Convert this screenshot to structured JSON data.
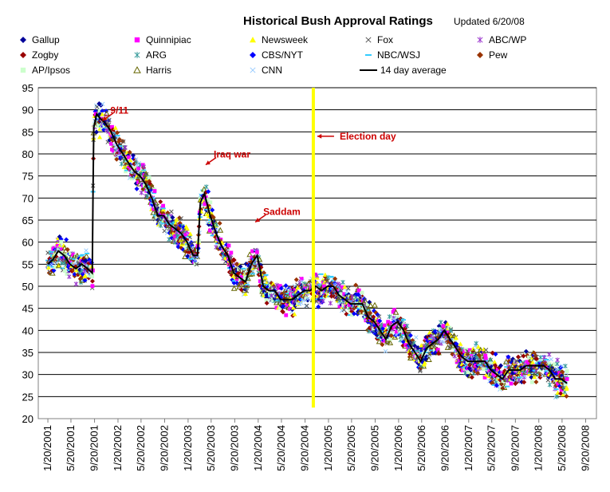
{
  "chart_data": {
    "type": "scatter",
    "title": "Historical Bush Approval Ratings",
    "subtitle": "Updated 6/20/08",
    "xlabel": "",
    "ylabel": "",
    "ylim": [
      20,
      95
    ],
    "yticks": [
      20,
      25,
      30,
      35,
      40,
      45,
      50,
      55,
      60,
      65,
      70,
      75,
      80,
      85,
      90,
      95
    ],
    "xlim": [
      "2000-12-01",
      "2008-11-15"
    ],
    "xticks": [
      "2001-01-20",
      "2001-05-20",
      "2001-09-20",
      "2002-01-20",
      "2002-05-20",
      "2002-09-20",
      "2003-01-20",
      "2003-05-20",
      "2003-09-20",
      "2004-01-20",
      "2004-05-20",
      "2004-09-20",
      "2005-01-20",
      "2005-05-20",
      "2005-09-20",
      "2006-01-20",
      "2006-05-20",
      "2006-09-20",
      "2007-01-20",
      "2007-05-20",
      "2007-09-20",
      "2008-01-20",
      "2008-05-20",
      "2008-09-20"
    ],
    "xtick_labels": [
      "1/20/2001",
      "5/20/2001",
      "9/20/2001",
      "1/20/2002",
      "5/20/2002",
      "9/20/2002",
      "1/20/2003",
      "5/20/2003",
      "9/20/2003",
      "1/20/2004",
      "5/20/2004",
      "9/20/2004",
      "1/20/2005",
      "5/20/2005",
      "9/20/2005",
      "1/20/2006",
      "5/20/2006",
      "9/20/2006",
      "1/20/2007",
      "5/20/2007",
      "9/20/2007",
      "1/20/2008",
      "5/20/2008",
      "9/20/2008"
    ],
    "grid": "horizontal",
    "legend_position": "top",
    "series": [
      {
        "name": "Gallup",
        "color": "#000099",
        "marker": "diamond"
      },
      {
        "name": "Quinnipiac",
        "color": "#ff00ff",
        "marker": "square"
      },
      {
        "name": "Newsweek",
        "color": "#ffff00",
        "marker": "triangle"
      },
      {
        "name": "Fox",
        "color": "#555555",
        "marker": "x"
      },
      {
        "name": "ABC/WP",
        "color": "#9933cc",
        "marker": "star"
      },
      {
        "name": "Zogby",
        "color": "#990000",
        "marker": "diamond"
      },
      {
        "name": "ARG",
        "color": "#339999",
        "marker": "star"
      },
      {
        "name": "CBS/NYT",
        "color": "#0000ff",
        "marker": "diamond"
      },
      {
        "name": "NBC/WSJ",
        "color": "#33ccff",
        "marker": "dash"
      },
      {
        "name": "Pew",
        "color": "#993300",
        "marker": "diamond"
      },
      {
        "name": "AP/Ipsos",
        "color": "#ccffcc",
        "marker": "square"
      },
      {
        "name": "Harris",
        "color": "#666600",
        "marker": "triangle-open"
      },
      {
        "name": "CNN",
        "color": "#99ccff",
        "marker": "x"
      },
      {
        "name": "14 day average",
        "color": "#000000",
        "marker": "line"
      }
    ],
    "average_path": [
      [
        "2001-01-20",
        55
      ],
      [
        "2001-02-15",
        56
      ],
      [
        "2001-03-15",
        58
      ],
      [
        "2001-04-15",
        57
      ],
      [
        "2001-05-15",
        55
      ],
      [
        "2001-06-15",
        54
      ],
      [
        "2001-07-15",
        55
      ],
      [
        "2001-08-15",
        54
      ],
      [
        "2001-09-08",
        53
      ],
      [
        "2001-09-12",
        72
      ],
      [
        "2001-09-16",
        86
      ],
      [
        "2001-10-01",
        89
      ],
      [
        "2001-10-20",
        88
      ],
      [
        "2001-11-15",
        87
      ],
      [
        "2001-12-15",
        85
      ],
      [
        "2002-01-15",
        82
      ],
      [
        "2002-02-15",
        80
      ],
      [
        "2002-03-15",
        78
      ],
      [
        "2002-04-15",
        76
      ],
      [
        "2002-05-15",
        75
      ],
      [
        "2002-06-15",
        73
      ],
      [
        "2002-07-15",
        70
      ],
      [
        "2002-08-15",
        66
      ],
      [
        "2002-09-15",
        66
      ],
      [
        "2002-10-15",
        64
      ],
      [
        "2002-11-15",
        63
      ],
      [
        "2002-12-15",
        62
      ],
      [
        "2003-01-15",
        60
      ],
      [
        "2003-02-15",
        57
      ],
      [
        "2003-03-10",
        57
      ],
      [
        "2003-03-25",
        69
      ],
      [
        "2003-04-15",
        71
      ],
      [
        "2003-05-15",
        66
      ],
      [
        "2003-06-15",
        62
      ],
      [
        "2003-07-15",
        59
      ],
      [
        "2003-08-15",
        57
      ],
      [
        "2003-09-15",
        53
      ],
      [
        "2003-10-15",
        52
      ],
      [
        "2003-11-15",
        51
      ],
      [
        "2003-12-15",
        55
      ],
      [
        "2004-01-15",
        57
      ],
      [
        "2004-02-15",
        50
      ],
      [
        "2004-03-15",
        49
      ],
      [
        "2004-04-15",
        49
      ],
      [
        "2004-05-15",
        47
      ],
      [
        "2004-06-15",
        47
      ],
      [
        "2004-07-15",
        47
      ],
      [
        "2004-08-15",
        48
      ],
      [
        "2004-09-15",
        49
      ],
      [
        "2004-10-15",
        49
      ],
      [
        "2004-11-15",
        50
      ],
      [
        "2004-12-15",
        49
      ],
      [
        "2005-01-15",
        50
      ],
      [
        "2005-02-15",
        50
      ],
      [
        "2005-03-15",
        48
      ],
      [
        "2005-04-15",
        47
      ],
      [
        "2005-05-15",
        46
      ],
      [
        "2005-06-15",
        46
      ],
      [
        "2005-07-15",
        46
      ],
      [
        "2005-08-15",
        43
      ],
      [
        "2005-09-15",
        42
      ],
      [
        "2005-10-15",
        40
      ],
      [
        "2005-11-15",
        38
      ],
      [
        "2005-12-15",
        41
      ],
      [
        "2006-01-15",
        42
      ],
      [
        "2006-02-15",
        40
      ],
      [
        "2006-03-15",
        37
      ],
      [
        "2006-04-15",
        35
      ],
      [
        "2006-05-15",
        33
      ],
      [
        "2006-06-15",
        36
      ],
      [
        "2006-07-15",
        37
      ],
      [
        "2006-08-15",
        38
      ],
      [
        "2006-09-15",
        40
      ],
      [
        "2006-10-15",
        38
      ],
      [
        "2006-11-15",
        36
      ],
      [
        "2006-12-15",
        34
      ],
      [
        "2007-01-15",
        33
      ],
      [
        "2007-02-15",
        33
      ],
      [
        "2007-03-15",
        33
      ],
      [
        "2007-04-15",
        33
      ],
      [
        "2007-05-15",
        31
      ],
      [
        "2007-06-15",
        30
      ],
      [
        "2007-07-15",
        29
      ],
      [
        "2007-08-15",
        31
      ],
      [
        "2007-09-15",
        31
      ],
      [
        "2007-10-15",
        31
      ],
      [
        "2007-11-15",
        32
      ],
      [
        "2007-12-15",
        32
      ],
      [
        "2008-01-15",
        32
      ],
      [
        "2008-02-15",
        32
      ],
      [
        "2008-03-15",
        31
      ],
      [
        "2008-04-15",
        29
      ],
      [
        "2008-05-15",
        29
      ],
      [
        "2008-06-15",
        28
      ]
    ],
    "election_day": "2004-11-02",
    "annotations": [
      {
        "text": "9/11",
        "point": [
          "2001-10-10",
          87
        ],
        "anchor": "upper-right"
      },
      {
        "text": "Iraq war",
        "point": [
          "2003-04-01",
          77
        ],
        "anchor": "upper-right"
      },
      {
        "text": "Saddam",
        "point": [
          "2003-12-15",
          64
        ],
        "anchor": "upper-right"
      },
      {
        "text": "Election day",
        "point": [
          "2004-11-02",
          84
        ],
        "anchor": "right"
      }
    ]
  }
}
